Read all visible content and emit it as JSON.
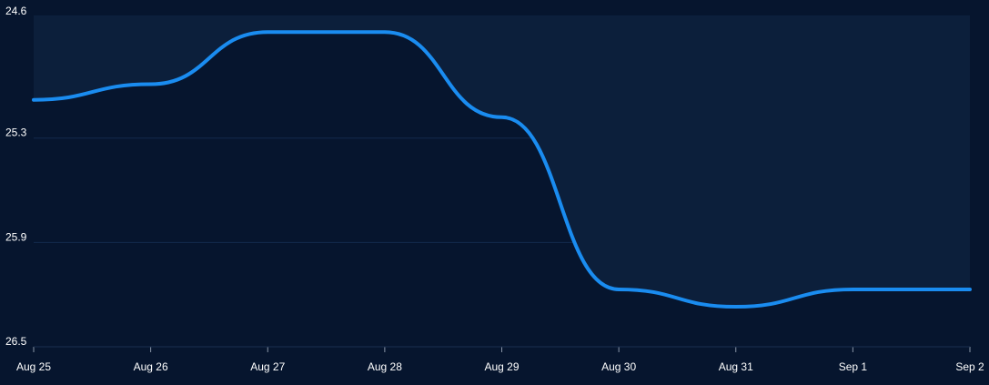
{
  "chart_data": {
    "type": "area-line",
    "x": [
      "Aug 25",
      "Aug 26",
      "Aug 27",
      "Aug 28",
      "Aug 29",
      "Aug 30",
      "Aug 31",
      "Sep 1",
      "Sep 2"
    ],
    "series": [
      {
        "color": "#1a8cf0",
        "values": [
          25.08,
          24.99,
          24.69,
          24.69,
          25.18,
          26.17,
          26.27,
          26.17,
          26.17
        ]
      }
    ],
    "ylim": [
      26.5,
      24.6
    ],
    "yticks": [
      24.6,
      25.3,
      25.9,
      26.5
    ],
    "grid": true
  }
}
